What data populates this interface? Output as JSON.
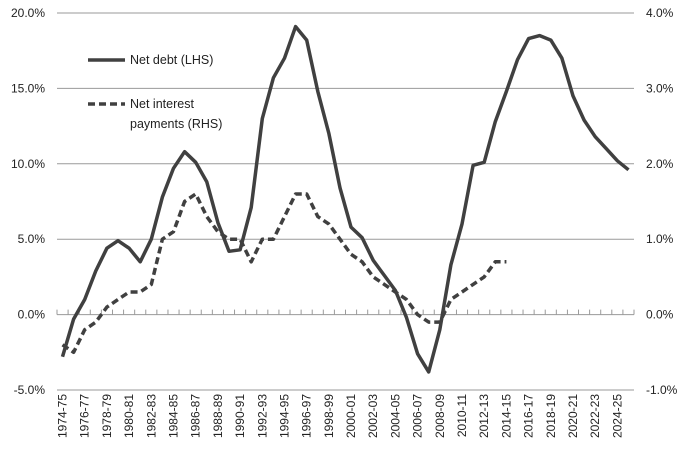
{
  "chart_data": {
    "type": "line",
    "title": "",
    "xlabel": "",
    "ylabel_left": "",
    "ylabel_right": "",
    "x": [
      "1974-75",
      "1975-76",
      "1976-77",
      "1977-78",
      "1978-79",
      "1979-80",
      "1980-81",
      "1981-82",
      "1982-83",
      "1983-84",
      "1984-85",
      "1985-86",
      "1986-87",
      "1987-88",
      "1988-89",
      "1989-90",
      "1990-91",
      "1991-92",
      "1992-93",
      "1993-94",
      "1994-95",
      "1995-96",
      "1996-97",
      "1997-98",
      "1998-99",
      "1999-00",
      "2000-01",
      "2001-02",
      "2002-03",
      "2003-04",
      "2004-05",
      "2005-06",
      "2006-07",
      "2007-08",
      "2008-09",
      "2009-10",
      "2010-11",
      "2011-12",
      "2012-13",
      "2013-14",
      "2014-15",
      "2015-16",
      "2016-17",
      "2017-18",
      "2018-19",
      "2019-20",
      "2020-21",
      "2021-22",
      "2022-23",
      "2023-24",
      "2024-25",
      "2025-26"
    ],
    "x_tick_labels": [
      "1974-75",
      "1976-77",
      "1978-79",
      "1980-81",
      "1982-83",
      "1984-85",
      "1986-87",
      "1988-89",
      "1990-91",
      "1992-93",
      "1994-95",
      "1996-97",
      "1998-99",
      "2000-01",
      "2002-03",
      "2004-05",
      "2006-07",
      "2008-09",
      "2010-11",
      "2012-13",
      "2014-15",
      "2016-17",
      "2018-19",
      "2020-21",
      "2022-23",
      "2024-25"
    ],
    "y_left": {
      "min": -5,
      "max": 20,
      "ticks": [
        "-5.0%",
        "0.0%",
        "5.0%",
        "10.0%",
        "15.0%",
        "20.0%"
      ],
      "tick_values": [
        -5,
        0,
        5,
        10,
        15,
        20
      ]
    },
    "y_right": {
      "min": -1,
      "max": 4,
      "ticks": [
        "-1.0%",
        "0.0%",
        "1.0%",
        "2.0%",
        "3.0%",
        "4.0%"
      ],
      "tick_values": [
        -1,
        0,
        1,
        2,
        3,
        4
      ]
    },
    "series": [
      {
        "name": "Net debt (LHS)",
        "axis": "left",
        "style": "solid",
        "color": "#404040",
        "values": [
          -2.8,
          -0.3,
          1.0,
          2.9,
          4.4,
          4.9,
          4.4,
          3.5,
          5.0,
          7.8,
          9.7,
          10.8,
          10.1,
          8.8,
          6.1,
          4.2,
          4.3,
          7.1,
          13.0,
          15.7,
          17.0,
          19.1,
          18.2,
          14.8,
          12.0,
          8.4,
          5.8,
          5.1,
          3.6,
          2.6,
          1.6,
          -0.2,
          -2.6,
          -3.8,
          -1.0,
          3.3,
          6.0,
          9.9,
          10.1,
          12.8,
          14.8,
          16.9,
          18.3,
          18.5,
          18.2,
          17.0,
          14.5,
          12.9,
          11.8,
          11.0,
          10.2,
          9.6
        ]
      },
      {
        "name": "Net interest payments (RHS)",
        "name_lines": [
          "Net interest",
          "payments (RHS)"
        ],
        "axis": "right",
        "style": "dashed",
        "color": "#404040",
        "values": [
          -0.4,
          -0.5,
          -0.2,
          -0.1,
          0.1,
          0.2,
          0.3,
          0.3,
          0.4,
          1.0,
          1.1,
          1.5,
          1.6,
          1.3,
          1.1,
          1.0,
          1.0,
          0.7,
          1.0,
          1.0,
          1.3,
          1.6,
          1.6,
          1.3,
          1.2,
          1.0,
          0.8,
          0.7,
          0.5,
          0.4,
          0.3,
          0.2,
          0.0,
          -0.1,
          -0.1,
          0.2,
          0.3,
          0.4,
          0.5,
          0.7,
          0.7,
          null,
          null,
          null,
          null,
          null,
          null,
          null,
          null,
          null,
          null,
          null
        ]
      }
    ],
    "grid": true,
    "legend": "top-left"
  }
}
